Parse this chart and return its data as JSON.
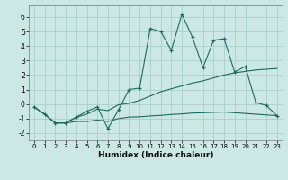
{
  "title": "",
  "xlabel": "Humidex (Indice chaleur)",
  "bg_color": "#cce8e4",
  "grid_color": "#aaceca",
  "line_color": "#1a6b60",
  "xlim": [
    -0.5,
    23.5
  ],
  "ylim": [
    -2.5,
    6.8
  ],
  "yticks": [
    -2,
    -1,
    0,
    1,
    2,
    3,
    4,
    5,
    6
  ],
  "xticks": [
    0,
    1,
    2,
    3,
    4,
    5,
    6,
    7,
    8,
    9,
    10,
    11,
    12,
    13,
    14,
    15,
    16,
    17,
    18,
    19,
    20,
    21,
    22,
    23
  ],
  "line1_x": [
    0,
    1,
    2,
    3,
    4,
    5,
    6,
    7,
    8,
    9,
    10,
    11,
    12,
    13,
    14,
    15,
    16,
    17,
    18,
    19,
    20,
    21,
    22,
    23
  ],
  "line1_y": [
    -0.2,
    -0.7,
    -1.3,
    -1.3,
    -0.9,
    -0.5,
    -0.2,
    -1.7,
    -0.4,
    1.0,
    1.1,
    5.2,
    5.0,
    3.7,
    6.2,
    4.6,
    2.5,
    4.4,
    4.5,
    2.2,
    2.6,
    0.1,
    -0.1,
    -0.8
  ],
  "line2_x": [
    0,
    1,
    2,
    3,
    4,
    5,
    6,
    7,
    8,
    9,
    10,
    11,
    12,
    13,
    14,
    15,
    16,
    17,
    18,
    19,
    20,
    21,
    22,
    23
  ],
  "line2_y": [
    -0.2,
    -0.7,
    -1.3,
    -1.3,
    -0.9,
    -0.7,
    -0.35,
    -0.45,
    -0.05,
    0.05,
    0.25,
    0.55,
    0.85,
    1.05,
    1.25,
    1.45,
    1.6,
    1.8,
    2.0,
    2.15,
    2.25,
    2.35,
    2.4,
    2.45
  ],
  "line3_x": [
    0,
    1,
    2,
    3,
    4,
    5,
    6,
    7,
    8,
    9,
    10,
    11,
    12,
    13,
    14,
    15,
    16,
    17,
    18,
    19,
    20,
    21,
    22,
    23
  ],
  "line3_y": [
    -0.2,
    -0.7,
    -1.3,
    -1.3,
    -1.2,
    -1.2,
    -1.1,
    -1.2,
    -1.0,
    -0.9,
    -0.88,
    -0.82,
    -0.78,
    -0.72,
    -0.68,
    -0.62,
    -0.6,
    -0.57,
    -0.55,
    -0.6,
    -0.65,
    -0.7,
    -0.75,
    -0.8
  ]
}
